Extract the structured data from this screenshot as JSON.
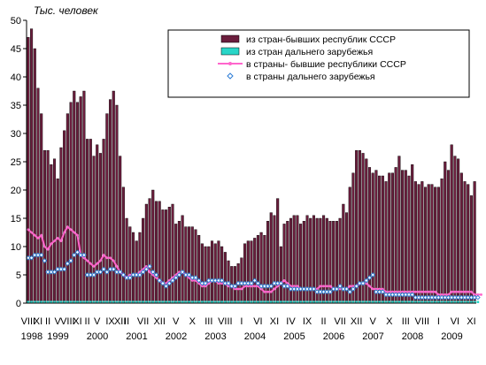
{
  "chart_data": {
    "type": "bar",
    "ylabel": "Тыс. человек",
    "ylim": [
      0,
      50
    ],
    "yticks": [
      0,
      5,
      10,
      15,
      20,
      25,
      30,
      35,
      40,
      45,
      50
    ],
    "grid": false,
    "legend_position": "top-right",
    "start_month": "1998-08",
    "month_labels": [
      {
        "label": "VIII",
        "month_index": 0
      },
      {
        "label": "XI",
        "month_index": 3
      },
      {
        "label": "II",
        "month_index": 6
      },
      {
        "label": "V",
        "month_index": 9
      },
      {
        "label": "VIII",
        "month_index": 12
      },
      {
        "label": "XI",
        "month_index": 15
      },
      {
        "label": "II",
        "month_index": 18
      },
      {
        "label": "V",
        "month_index": 21
      },
      {
        "label": "IX",
        "month_index": 25
      },
      {
        "label": "XII",
        "month_index": 28
      },
      {
        "label": "II",
        "month_index": 30
      },
      {
        "label": "VII",
        "month_index": 35
      },
      {
        "label": "XII",
        "month_index": 40
      },
      {
        "label": "V",
        "month_index": 45
      },
      {
        "label": "X",
        "month_index": 50
      },
      {
        "label": "III",
        "month_index": 55
      },
      {
        "label": "VIII",
        "month_index": 60
      },
      {
        "label": "I",
        "month_index": 65
      },
      {
        "label": "VI",
        "month_index": 70
      },
      {
        "label": "XI",
        "month_index": 75
      },
      {
        "label": "IV",
        "month_index": 80
      },
      {
        "label": "IX",
        "month_index": 85
      },
      {
        "label": "II",
        "month_index": 90
      },
      {
        "label": "VII",
        "month_index": 95
      },
      {
        "label": "XII",
        "month_index": 100
      },
      {
        "label": "V",
        "month_index": 105
      },
      {
        "label": "X",
        "month_index": 110
      },
      {
        "label": "III",
        "month_index": 115
      },
      {
        "label": "VIII",
        "month_index": 120
      },
      {
        "label": "I",
        "month_index": 125
      },
      {
        "label": "VI",
        "month_index": 130
      },
      {
        "label": "XI",
        "month_index": 135
      }
    ],
    "year_labels": [
      {
        "label": "1998",
        "month_index": 0
      },
      {
        "label": "1999",
        "month_index": 8
      },
      {
        "label": "2000",
        "month_index": 20
      },
      {
        "label": "2001",
        "month_index": 32
      },
      {
        "label": "2002",
        "month_index": 44
      },
      {
        "label": "2003",
        "month_index": 56
      },
      {
        "label": "2004",
        "month_index": 68
      },
      {
        "label": "2005",
        "month_index": 80
      },
      {
        "label": "2006",
        "month_index": 92
      },
      {
        "label": "2007",
        "month_index": 104
      },
      {
        "label": "2008",
        "month_index": 116
      },
      {
        "label": "2009",
        "month_index": 128
      }
    ],
    "series": [
      {
        "name": "из стран-бывших республик СССР",
        "kind": "bar",
        "color": "#6b1e3d",
        "values": [
          47,
          48.5,
          45,
          38,
          33.5,
          27,
          27,
          24.5,
          25.5,
          22,
          27.5,
          30.5,
          33.5,
          35.5,
          37.5,
          35.5,
          36.5,
          37.5,
          29,
          29,
          26,
          28,
          26.5,
          29,
          33.5,
          36,
          37.5,
          35,
          26,
          20.5,
          15,
          13.5,
          12.5,
          11,
          12.5,
          15,
          17.5,
          18.5,
          20,
          18,
          18,
          16.5,
          16.5,
          17,
          17.5,
          14,
          14.5,
          15.5,
          13.5,
          13.5,
          13.5,
          13,
          12,
          10.5,
          10,
          10,
          11,
          10.5,
          11,
          10,
          9,
          7.5,
          6.5,
          6.5,
          7,
          8,
          10.5,
          11,
          11,
          11.5,
          12,
          12.5,
          12,
          14.5,
          16,
          15.5,
          18.5,
          10,
          14,
          14.5,
          15,
          15.5,
          15.5,
          14,
          14.5,
          15.5,
          15,
          15.5,
          15,
          15,
          15.5,
          15,
          14.5,
          14.5,
          14.5,
          15,
          17.5,
          16,
          20.5,
          23,
          27,
          27,
          26.5,
          25.5,
          24,
          23,
          23.5,
          22.5,
          22.5,
          21.5,
          23,
          23,
          24,
          26,
          23.5,
          23.5,
          22.5,
          24.5,
          21.5,
          21,
          21.5,
          20.5,
          21,
          21,
          20.5,
          20.5,
          22,
          25,
          23.5,
          28,
          26,
          25.5,
          23,
          21.5,
          21,
          19,
          21.5
        ]
      },
      {
        "name": "из стран дальнего зарубежья",
        "kind": "bar",
        "color": "#29d6c8",
        "values": [
          0.4,
          0.4,
          0.4,
          0.4,
          0.4,
          0.4,
          0.4,
          0.4,
          0.4,
          0.4,
          0.4,
          0.4,
          0.4,
          0.4,
          0.4,
          0.4,
          0.4,
          0.4,
          0.4,
          0.4,
          0.4,
          0.4,
          0.4,
          0.4,
          0.4,
          0.4,
          0.4,
          0.4,
          0.4,
          0.4,
          0.4,
          0.4,
          0.4,
          0.4,
          0.4,
          0.4,
          0.4,
          0.4,
          0.4,
          0.4,
          0.4,
          0.4,
          0.4,
          0.4,
          0.4,
          0.4,
          0.4,
          0.4,
          0.4,
          0.4,
          0.4,
          0.4,
          0.4,
          0.4,
          0.4,
          0.4,
          0.4,
          0.4,
          0.4,
          0.4,
          0.4,
          0.4,
          0.4,
          0.4,
          0.4,
          0.4,
          0.4,
          0.4,
          0.4,
          0.4,
          0.4,
          0.4,
          0.4,
          0.4,
          0.4,
          0.4,
          0.4,
          0.4,
          0.4,
          0.4,
          0.4,
          0.4,
          0.4,
          0.4,
          0.4,
          0.4,
          0.4,
          0.4,
          0.4,
          0.4,
          0.4,
          0.4,
          0.4,
          0.4,
          0.4,
          0.4,
          0.4,
          0.4,
          0.4,
          0.4,
          0.4,
          0.4,
          0.4,
          0.4,
          0.4,
          0.4,
          0.4,
          0.4,
          0.4,
          0.4,
          0.4,
          0.4,
          0.4,
          0.4,
          0.4,
          0.4,
          0.4,
          0.4,
          0.4,
          0.4,
          0.4,
          0.4,
          0.4,
          0.4,
          0.4,
          0.4,
          0.4,
          0.4,
          0.4,
          0.4,
          0.4,
          0.4,
          0.4,
          0.4,
          0.4,
          0.4,
          0.4,
          0.4
        ]
      },
      {
        "name": "в страны- бывшие республики СССР",
        "kind": "line",
        "color": "#ff66cc",
        "values": [
          13,
          12.5,
          12,
          11.5,
          12,
          10,
          9.5,
          10.5,
          11,
          11.5,
          11,
          12.5,
          13.5,
          13,
          12.5,
          12,
          8.5,
          8,
          7.5,
          7,
          6.5,
          7,
          7.5,
          8.5,
          8,
          8,
          7.5,
          6.5,
          5.5,
          5,
          4.5,
          5,
          5,
          5,
          5.5,
          6,
          6.5,
          5.5,
          5,
          4.5,
          4,
          3.5,
          3.5,
          4,
          4.5,
          5,
          5.5,
          5.5,
          5,
          4.5,
          4,
          4,
          3.5,
          3,
          3,
          3.5,
          4,
          4,
          3.5,
          3.5,
          3.5,
          3,
          3,
          2.5,
          2.5,
          2.5,
          3,
          3,
          3,
          3,
          3,
          2.5,
          2,
          2,
          2,
          2.5,
          3,
          3.5,
          4,
          3.5,
          3,
          3,
          3,
          2.5,
          2.5,
          2.5,
          2.5,
          2.5,
          2.5,
          3,
          3,
          3,
          3,
          2.5,
          2.5,
          2.5,
          2.5,
          2.5,
          3,
          3,
          3,
          3.5,
          3.5,
          3.5,
          3,
          2.5,
          2.5,
          2.5,
          2.5,
          2,
          2,
          2,
          2,
          2,
          2,
          2,
          2,
          2,
          2,
          2,
          2,
          2,
          2,
          2,
          2,
          1.5,
          1.5,
          1.5,
          1.5,
          2,
          2,
          2,
          2,
          2,
          2,
          2,
          1.5,
          1.5,
          1.5
        ]
      },
      {
        "name": "в страны дальнего зарубежья",
        "kind": "points",
        "color": "#2a7bd6",
        "values": [
          8,
          8,
          8.5,
          8.5,
          8.5,
          7.5,
          5.5,
          5.5,
          5.5,
          6,
          6,
          6,
          7,
          7.5,
          8.5,
          9,
          8.5,
          8.5,
          5,
          5,
          5,
          5.5,
          5.5,
          6,
          5.5,
          6,
          6,
          5.5,
          5.5,
          5,
          4.5,
          4.5,
          5,
          5,
          5,
          5.5,
          6,
          6.5,
          5.5,
          5,
          4,
          3.5,
          3,
          3.5,
          4,
          4.5,
          5,
          5.5,
          5,
          5,
          4.5,
          4.5,
          4,
          3.5,
          3.5,
          4,
          4,
          4,
          4,
          4,
          3.5,
          3.5,
          3,
          3,
          3.5,
          3.5,
          3.5,
          3.5,
          3.5,
          4,
          3.5,
          3,
          3,
          3,
          3,
          3.5,
          3.5,
          3.5,
          3,
          3,
          2.5,
          2.5,
          2.5,
          2.5,
          2.5,
          2.5,
          2.5,
          2.5,
          2,
          2,
          2,
          2,
          2,
          2.5,
          2.5,
          3,
          2.5,
          2.5,
          2,
          2.5,
          3,
          3.5,
          3.5,
          4,
          4.5,
          5,
          2,
          2,
          2,
          1.5,
          1.5,
          1.5,
          1.5,
          1.5,
          1.5,
          1.5,
          1.5,
          1.5,
          1,
          1,
          1,
          1,
          1,
          1,
          1,
          1,
          1,
          1,
          1,
          1,
          1,
          1,
          1,
          1,
          1,
          1,
          1,
          1
        ]
      }
    ]
  }
}
